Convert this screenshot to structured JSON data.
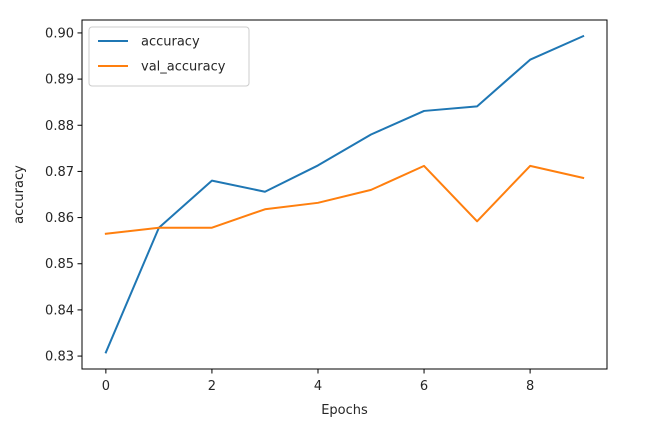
{
  "chart_data": {
    "type": "line",
    "title": "",
    "xlabel": "Epochs",
    "ylabel": "accuracy",
    "x": [
      0,
      1,
      2,
      3,
      4,
      5,
      6,
      7,
      8,
      9
    ],
    "xlim": [
      -0.45,
      9.45
    ],
    "ylim": [
      0.8272,
      0.9028
    ],
    "xticks": [
      0,
      2,
      4,
      6,
      8
    ],
    "xtick_labels": [
      "0",
      "2",
      "4",
      "6",
      "8"
    ],
    "yticks": [
      0.83,
      0.84,
      0.85,
      0.86,
      0.87,
      0.88,
      0.89,
      0.9
    ],
    "ytick_labels": [
      "0.83",
      "0.84",
      "0.85",
      "0.86",
      "0.87",
      "0.88",
      "0.89",
      "0.90"
    ],
    "grid": false,
    "legend_position": "top-left",
    "series": [
      {
        "name": "accuracy",
        "color": "#1f77b4",
        "values": [
          0.8308,
          0.8578,
          0.868,
          0.8656,
          0.8713,
          0.878,
          0.8831,
          0.8841,
          0.8942,
          0.8993
        ]
      },
      {
        "name": "val_accuracy",
        "color": "#ff7f0e",
        "values": [
          0.8565,
          0.8578,
          0.8578,
          0.8618,
          0.8632,
          0.866,
          0.8712,
          0.8592,
          0.8712,
          0.8686
        ]
      }
    ]
  }
}
